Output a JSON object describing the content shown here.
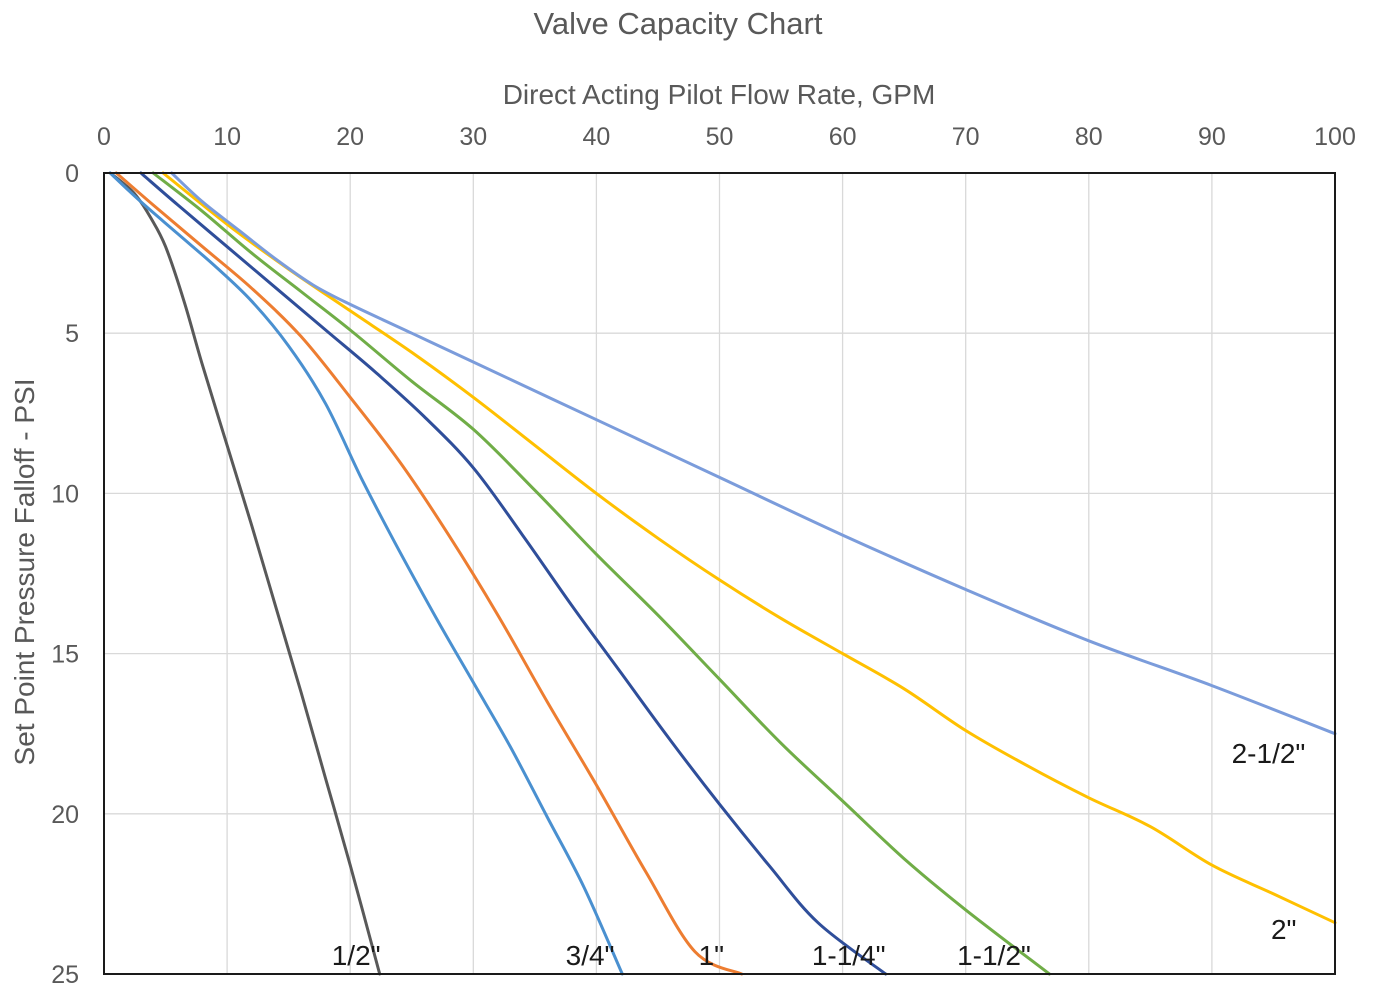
{
  "chart_data": {
    "type": "line",
    "title": "Valve Capacity Chart",
    "xlabel": "Direct Acting Pilot Flow Rate, GPM",
    "ylabel": "Set Point Pressure Falloff - PSI",
    "x_axis_position": "top",
    "y_axis_inverted": true,
    "xlim": [
      0,
      100
    ],
    "ylim": [
      0,
      25
    ],
    "x_ticks": [
      0,
      10,
      20,
      30,
      40,
      50,
      60,
      70,
      80,
      90,
      100
    ],
    "y_ticks": [
      0,
      5,
      10,
      15,
      20,
      25
    ],
    "grid": true,
    "legend": "none; series labelled directly on chart",
    "series": [
      {
        "name": "1/2\"",
        "color": "#595959",
        "points": [
          [
            0.5,
            0
          ],
          [
            1.5,
            0.3
          ],
          [
            2.6,
            0.7
          ],
          [
            3.8,
            1.4
          ],
          [
            5,
            2.3
          ],
          [
            6.5,
            4
          ],
          [
            8,
            6
          ],
          [
            10,
            8.5
          ],
          [
            12,
            11
          ],
          [
            14,
            13.6
          ],
          [
            16,
            16.2
          ],
          [
            18,
            18.9
          ],
          [
            20,
            21.6
          ],
          [
            22.4,
            25
          ]
        ]
      },
      {
        "name": "3/4\"",
        "color": "#4a90d0",
        "points": [
          [
            0.5,
            0
          ],
          [
            3,
            0.9
          ],
          [
            6,
            1.9
          ],
          [
            9,
            2.9
          ],
          [
            12,
            4
          ],
          [
            15,
            5.4
          ],
          [
            18,
            7.2
          ],
          [
            21,
            9.6
          ],
          [
            24,
            11.8
          ],
          [
            27,
            13.9
          ],
          [
            30,
            15.9
          ],
          [
            33,
            17.9
          ],
          [
            36,
            20.1
          ],
          [
            39,
            22.3
          ],
          [
            42.1,
            25
          ]
        ]
      },
      {
        "name": "1\"",
        "color": "#ed7d31",
        "points": [
          [
            1,
            0
          ],
          [
            4,
            1
          ],
          [
            8,
            2.3
          ],
          [
            12,
            3.6
          ],
          [
            16,
            5.1
          ],
          [
            20,
            7
          ],
          [
            24,
            9
          ],
          [
            28,
            11.3
          ],
          [
            32,
            13.8
          ],
          [
            36,
            16.5
          ],
          [
            40,
            19.1
          ],
          [
            44,
            21.8
          ],
          [
            48,
            24.3
          ],
          [
            51.8,
            25
          ]
        ]
      },
      {
        "name": "1-1/4\"",
        "color": "#2f4e9a",
        "points": [
          [
            3,
            0
          ],
          [
            6,
            1
          ],
          [
            10,
            2.3
          ],
          [
            14,
            3.6
          ],
          [
            18,
            4.9
          ],
          [
            22,
            6.2
          ],
          [
            26,
            7.6
          ],
          [
            30,
            9.2
          ],
          [
            34,
            11.3
          ],
          [
            38,
            13.5
          ],
          [
            42,
            15.6
          ],
          [
            46,
            17.7
          ],
          [
            50,
            19.7
          ],
          [
            54,
            21.6
          ],
          [
            58,
            23.4
          ],
          [
            63.5,
            25
          ]
        ]
      },
      {
        "name": "1-1/2\"",
        "color": "#70ad47",
        "points": [
          [
            4,
            0
          ],
          [
            8,
            1.2
          ],
          [
            12,
            2.5
          ],
          [
            16,
            3.7
          ],
          [
            20,
            4.9
          ],
          [
            25,
            6.5
          ],
          [
            30,
            8
          ],
          [
            35,
            9.9
          ],
          [
            40,
            11.9
          ],
          [
            45,
            13.8
          ],
          [
            50,
            15.8
          ],
          [
            55,
            17.8
          ],
          [
            60,
            19.6
          ],
          [
            65,
            21.4
          ],
          [
            70,
            23
          ],
          [
            76.8,
            25
          ]
        ]
      },
      {
        "name": "2\"",
        "color": "#ffc000",
        "points": [
          [
            4.8,
            0
          ],
          [
            10,
            1.6
          ],
          [
            15,
            3
          ],
          [
            20,
            4.3
          ],
          [
            25,
            5.6
          ],
          [
            30,
            7
          ],
          [
            35,
            8.5
          ],
          [
            40,
            10
          ],
          [
            45,
            11.4
          ],
          [
            50,
            12.7
          ],
          [
            55,
            13.9
          ],
          [
            60,
            15
          ],
          [
            65,
            16.1
          ],
          [
            70,
            17.4
          ],
          [
            75,
            18.5
          ],
          [
            80,
            19.5
          ],
          [
            85,
            20.4
          ],
          [
            90,
            21.6
          ],
          [
            95,
            22.5
          ],
          [
            100,
            23.4
          ]
        ]
      },
      {
        "name": "2-1/2\"",
        "color": "#7b9cdb",
        "points": [
          [
            5.5,
            0
          ],
          [
            8,
            0.9
          ],
          [
            11,
            1.8
          ],
          [
            14,
            2.7
          ],
          [
            17,
            3.5
          ],
          [
            20,
            4.1
          ],
          [
            25,
            5
          ],
          [
            30,
            5.9
          ],
          [
            40,
            7.7
          ],
          [
            50,
            9.5
          ],
          [
            60,
            11.3
          ],
          [
            70,
            13
          ],
          [
            80,
            14.6
          ],
          [
            90,
            16
          ],
          [
            100,
            17.5
          ]
        ]
      }
    ],
    "annotations": [
      {
        "text": "1/2\"",
        "x": 18.5,
        "y": 24.4
      },
      {
        "text": "3/4\"",
        "x": 37.5,
        "y": 24.4
      },
      {
        "text": "1\"",
        "x": 48.3,
        "y": 24.4
      },
      {
        "text": "1-1/4\"",
        "x": 57.5,
        "y": 24.4
      },
      {
        "text": "1-1/2\"",
        "x": 69.3,
        "y": 24.4
      },
      {
        "text": "2\"",
        "x": 94.8,
        "y": 23.6
      },
      {
        "text": "2-1/2\"",
        "x": 91.6,
        "y": 18.1
      }
    ]
  }
}
